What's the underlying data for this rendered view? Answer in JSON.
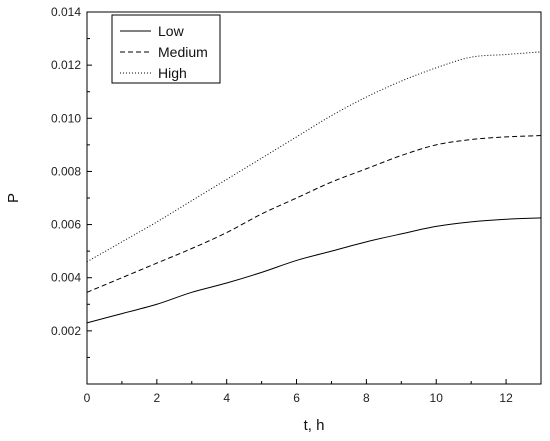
{
  "chart_data": {
    "type": "line",
    "xlabel": "t, h",
    "ylabel": "P",
    "xlim": [
      0,
      13
    ],
    "ylim": [
      0,
      0.014
    ],
    "xticks": [
      0,
      2,
      4,
      6,
      8,
      10,
      12
    ],
    "xtick_labels": [
      "0",
      "2",
      "4",
      "6",
      "8",
      "10",
      "12"
    ],
    "yticks": [
      0.002,
      0.004,
      0.006,
      0.008,
      0.01,
      0.012,
      0.014
    ],
    "ytick_labels": [
      "0.002",
      "0.004",
      "0.006",
      "0.008",
      "0.010",
      "0.012",
      "0.014"
    ],
    "grid": false,
    "legend_position": "top-left",
    "series": [
      {
        "name": "Low",
        "style": "solid",
        "color": "#000000",
        "x": [
          0,
          1,
          2,
          3,
          4,
          5,
          6,
          7,
          8,
          9,
          10,
          11,
          12,
          13
        ],
        "y": [
          0.0023,
          0.00265,
          0.003,
          0.00345,
          0.0038,
          0.0042,
          0.00465,
          0.005,
          0.00535,
          0.00565,
          0.00593,
          0.0061,
          0.0062,
          0.00625
        ]
      },
      {
        "name": "Medium",
        "style": "dashed",
        "color": "#000000",
        "x": [
          0,
          1,
          2,
          3,
          4,
          5,
          6,
          7,
          8,
          9,
          10,
          11,
          12,
          13
        ],
        "y": [
          0.00345,
          0.004,
          0.00455,
          0.0051,
          0.0057,
          0.0064,
          0.007,
          0.0076,
          0.0081,
          0.0086,
          0.009,
          0.0092,
          0.0093,
          0.00935
        ]
      },
      {
        "name": "High",
        "style": "dotted",
        "color": "#000000",
        "x": [
          0,
          1,
          2,
          3,
          4,
          5,
          6,
          7,
          8,
          9,
          10,
          11,
          12,
          13
        ],
        "y": [
          0.0046,
          0.00535,
          0.0061,
          0.0069,
          0.0077,
          0.0085,
          0.0093,
          0.0101,
          0.0108,
          0.0114,
          0.0119,
          0.0123,
          0.0124,
          0.0125
        ]
      }
    ]
  }
}
